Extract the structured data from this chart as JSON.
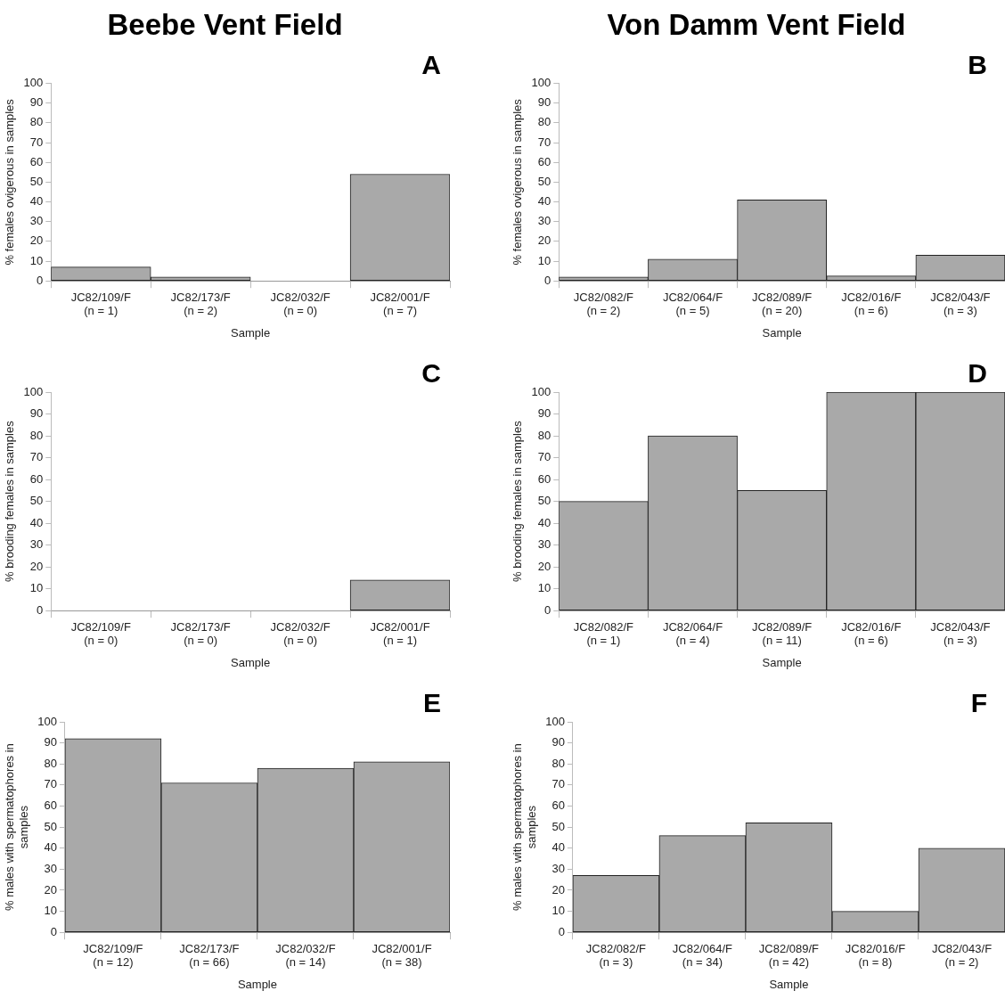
{
  "chart_data": [
    {
      "type": "bar",
      "title": "Beebe Vent Field",
      "annotations": [
        "A"
      ],
      "xlabel": "Sample",
      "ylabel": "% females ovigerous in samples",
      "categories": [
        "JC82/109/F\n(n = 1)",
        "JC82/173/F\n(n = 2)",
        "JC82/032/F\n(n = 0)",
        "JC82/001/F\n(n = 7)"
      ],
      "values": [
        7,
        2,
        0,
        54
      ],
      "color": "#a9a9a9",
      "ylim": [
        0,
        100
      ],
      "yticks": [
        0,
        10,
        20,
        30,
        40,
        50,
        60,
        70,
        80,
        90,
        100
      ]
    },
    {
      "type": "bar",
      "title": "Von Damm Vent Field",
      "annotations": [
        "B"
      ],
      "xlabel": "Sample",
      "ylabel": "% females ovigerous in samples",
      "categories": [
        "JC82/082/F\n(n = 2)",
        "JC82/064/F\n(n = 5)",
        "JC82/089/F\n(n = 20)",
        "JC82/016/F\n(n = 6)",
        "JC82/043/F\n(n = 3)"
      ],
      "values": [
        2,
        11,
        41,
        2.5,
        13
      ],
      "color": "#a9a9a9",
      "ylim": [
        0,
        100
      ],
      "yticks": [
        0,
        10,
        20,
        30,
        40,
        50,
        60,
        70,
        80,
        90,
        100
      ]
    },
    {
      "type": "bar",
      "annotations": [
        "C"
      ],
      "xlabel": "Sample",
      "ylabel": "% brooding females in samples",
      "categories": [
        "JC82/109/F\n(n = 0)",
        "JC82/173/F\n(n = 0)",
        "JC82/032/F\n(n = 0)",
        "JC82/001/F\n(n = 1)"
      ],
      "values": [
        0,
        0,
        0,
        14
      ],
      "color": "#a9a9a9",
      "ylim": [
        0,
        100
      ],
      "yticks": [
        0,
        10,
        20,
        30,
        40,
        50,
        60,
        70,
        80,
        90,
        100
      ]
    },
    {
      "type": "bar",
      "annotations": [
        "D"
      ],
      "xlabel": "Sample",
      "ylabel": "% brooding females in samples",
      "categories": [
        "JC82/082/F\n(n = 1)",
        "JC82/064/F\n(n = 4)",
        "JC82/089/F\n(n = 11)",
        "JC82/016/F\n(n = 6)",
        "JC82/043/F\n(n = 3)"
      ],
      "values": [
        50,
        80,
        55,
        100,
        100
      ],
      "color": "#a9a9a9",
      "ylim": [
        0,
        100
      ],
      "yticks": [
        0,
        10,
        20,
        30,
        40,
        50,
        60,
        70,
        80,
        90,
        100
      ]
    },
    {
      "type": "bar",
      "annotations": [
        "E"
      ],
      "xlabel": "Sample",
      "ylabel": "% males with spermatophores in samples",
      "categories": [
        "JC82/109/F\n(n = 12)",
        "JC82/173/F\n(n = 66)",
        "JC82/032/F\n(n = 14)",
        "JC82/001/F\n(n = 38)"
      ],
      "values": [
        92,
        71,
        78,
        81
      ],
      "color": "#a9a9a9",
      "ylim": [
        0,
        100
      ],
      "yticks": [
        0,
        10,
        20,
        30,
        40,
        50,
        60,
        70,
        80,
        90,
        100
      ]
    },
    {
      "type": "bar",
      "annotations": [
        "F"
      ],
      "xlabel": "Sample",
      "ylabel": "% males with spermatophores in samples",
      "categories": [
        "JC82/082/F\n(n = 3)",
        "JC82/064/F\n(n = 34)",
        "JC82/089/F\n(n = 42)",
        "JC82/016/F\n(n = 8)",
        "JC82/043/F\n(n = 2)"
      ],
      "values": [
        27,
        46,
        52,
        10,
        40
      ],
      "color": "#a9a9a9",
      "ylim": [
        0,
        100
      ],
      "yticks": [
        0,
        10,
        20,
        30,
        40,
        50,
        60,
        70,
        80,
        90,
        100
      ]
    }
  ]
}
